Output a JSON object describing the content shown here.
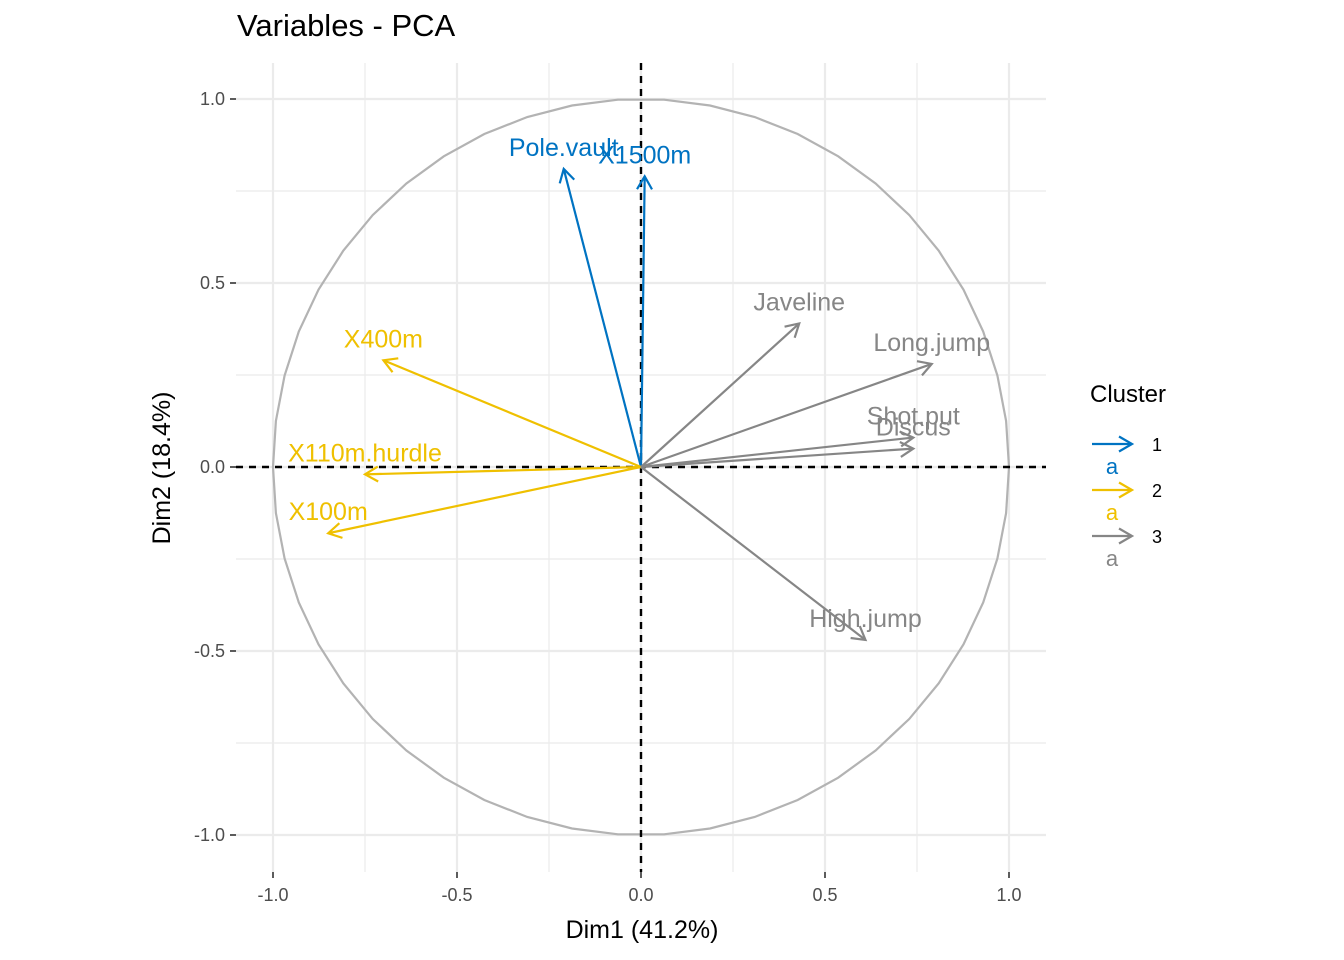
{
  "colors": {
    "cluster_1": "#0073C2",
    "cluster_2": "#EFC000",
    "cluster_3": "#868686",
    "circle": "#b3b3b3",
    "grid": "#ebebeb",
    "reference_line": "#000000"
  },
  "chart_data": {
    "type": "scatter",
    "subtype": "pca-variable-correlation-circle",
    "title": "Variables - PCA",
    "xlabel": "Dim1 (41.2%)",
    "ylabel": "Dim2 (18.4%)",
    "xlim": [
      -1.1,
      1.1
    ],
    "ylim": [
      -1.1,
      1.1
    ],
    "x_ticks": [
      -1.0,
      -0.5,
      0.0,
      0.5,
      1.0
    ],
    "x_tick_labels": [
      "-1.0",
      "-0.5",
      "0.0",
      "0.5",
      "1.0"
    ],
    "y_ticks": [
      -1.0,
      -0.5,
      0.0,
      0.5,
      1.0
    ],
    "y_tick_labels": [
      "-1.0",
      "-0.5",
      "0.0",
      "0.5",
      "1.0"
    ],
    "grid": true,
    "unit_circle": true,
    "reference_lines": [
      "x=0",
      "y=0"
    ],
    "legend": {
      "title": "Cluster",
      "placement": "right",
      "entries": [
        {
          "label": "1",
          "key_text": "a",
          "color": "#0073C2"
        },
        {
          "label": "2",
          "key_text": "a",
          "color": "#EFC000"
        },
        {
          "label": "3",
          "key_text": "a",
          "color": "#868686"
        }
      ]
    },
    "series": [
      {
        "name": "1",
        "color": "#0073C2",
        "points": [
          {
            "label": "Pole.vault",
            "x": -0.21,
            "y": 0.81
          },
          {
            "label": "X1500m",
            "x": 0.01,
            "y": 0.79
          }
        ]
      },
      {
        "name": "2",
        "color": "#EFC000",
        "points": [
          {
            "label": "X400m",
            "x": -0.7,
            "y": 0.29
          },
          {
            "label": "X110m.hurdle",
            "x": -0.75,
            "y": -0.02
          },
          {
            "label": "X100m",
            "x": -0.85,
            "y": -0.18
          }
        ]
      },
      {
        "name": "3",
        "color": "#868686",
        "points": [
          {
            "label": "Javeline",
            "x": 0.43,
            "y": 0.39
          },
          {
            "label": "Long.jump",
            "x": 0.79,
            "y": 0.28
          },
          {
            "label": "Shot.put",
            "x": 0.74,
            "y": 0.08
          },
          {
            "label": "Discus",
            "x": 0.74,
            "y": 0.05
          },
          {
            "label": "High.jump",
            "x": 0.61,
            "y": -0.47
          }
        ]
      }
    ]
  }
}
